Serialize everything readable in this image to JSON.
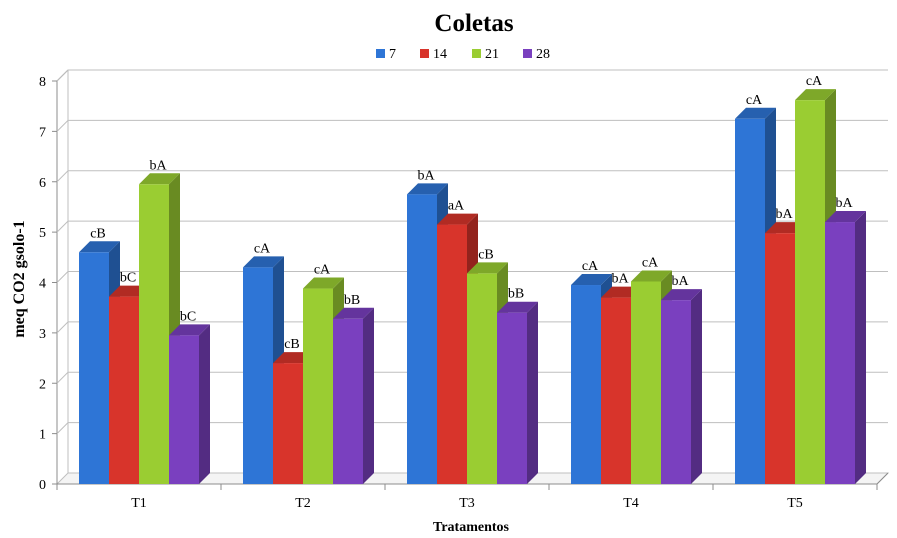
{
  "chart_data": {
    "type": "bar",
    "title": "Coletas",
    "xlabel": "Tratamentos",
    "ylabel": "meq CO2 gsolo-1",
    "ylim": [
      0,
      8
    ],
    "yticks": [
      "0",
      "1",
      "2",
      "3",
      "4",
      "5",
      "6",
      "7",
      "8"
    ],
    "categories": [
      "T1",
      "T2",
      "T3",
      "T4",
      "T5"
    ],
    "legend_position": "top",
    "grid": true,
    "series": [
      {
        "name": "7",
        "color": "#2E75D6",
        "values": [
          4.6,
          4.3,
          5.75,
          3.95,
          7.25
        ],
        "labels": [
          "cB",
          "cA",
          "bA",
          "cA",
          "cA"
        ]
      },
      {
        "name": "14",
        "color": "#D8342B",
        "values": [
          3.72,
          2.4,
          5.15,
          3.7,
          4.98
        ],
        "labels": [
          "bC",
          "cB",
          "aA",
          "bA",
          "bA"
        ]
      },
      {
        "name": "21",
        "color": "#9ACD32",
        "values": [
          5.95,
          3.88,
          4.18,
          4.02,
          7.62
        ],
        "labels": [
          "bA",
          "cA",
          "cB",
          "cA",
          "cA"
        ]
      },
      {
        "name": "28",
        "color": "#7A40BF",
        "values": [
          2.95,
          3.28,
          3.4,
          3.65,
          5.2
        ],
        "labels": [
          "bC",
          "bB",
          "bB",
          "bA",
          "bA"
        ]
      }
    ]
  }
}
